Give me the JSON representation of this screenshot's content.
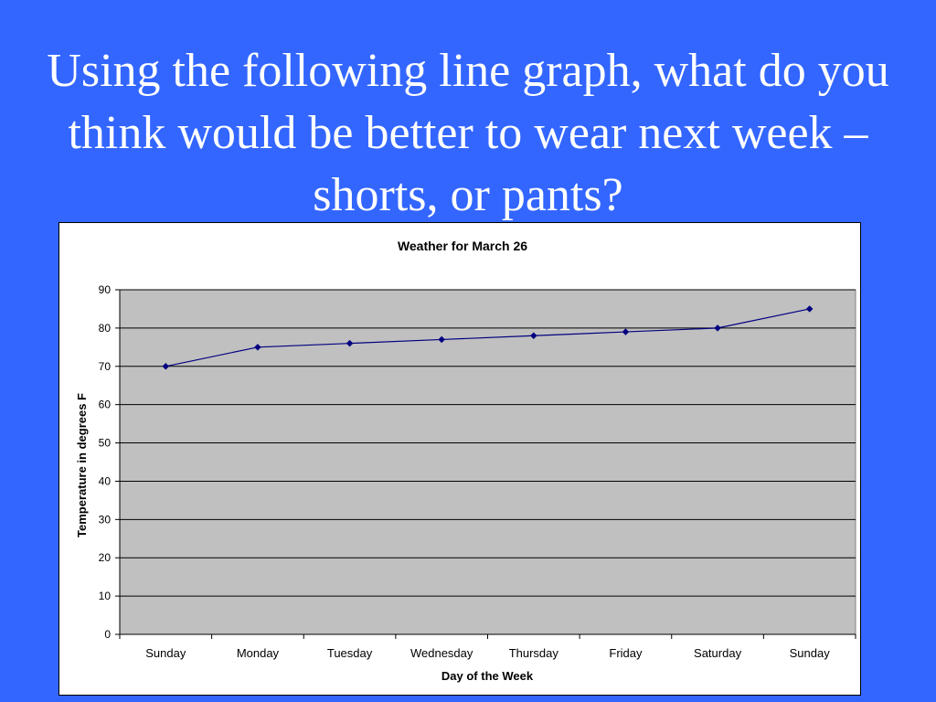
{
  "slide": {
    "title": "Using the following line graph, what do you think would be better to wear next week – shorts, or pants?"
  },
  "colors": {
    "background": "#3366ff",
    "plot_area": "#c0c0c0",
    "line": "#000080",
    "text": "#000000"
  },
  "chart_data": {
    "type": "line",
    "title": "Weather for March 26",
    "xlabel": "Day of the Week",
    "ylabel": "Temperature in degrees F",
    "categories": [
      "Sunday",
      "Monday",
      "Tuesday",
      "Wednesday",
      "Thursday",
      "Friday",
      "Saturday",
      "Sunday"
    ],
    "series": [
      {
        "values": [
          70,
          75,
          76,
          77,
          78,
          79,
          80,
          85
        ]
      }
    ],
    "ylim": [
      0,
      90
    ],
    "yticks": [
      0,
      10,
      20,
      30,
      40,
      50,
      60,
      70,
      80,
      90
    ],
    "grid": true,
    "legend": "none",
    "marker": "diamond"
  }
}
